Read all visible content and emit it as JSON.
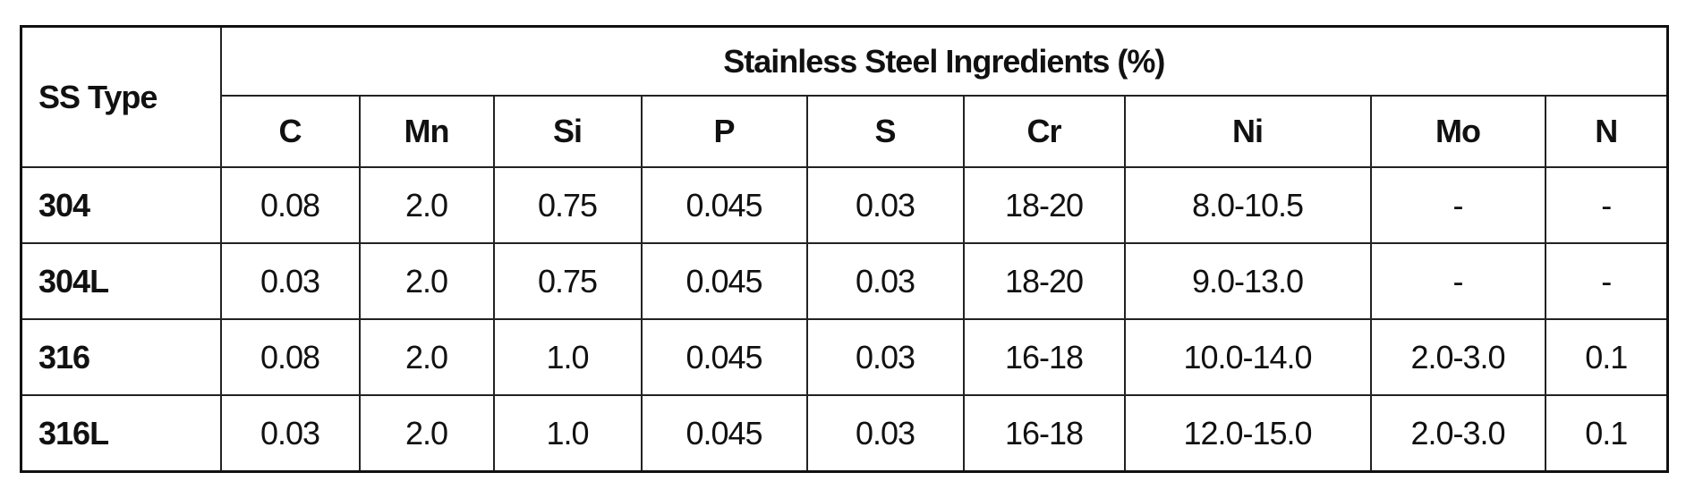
{
  "header": {
    "row_label": "SS Type",
    "group_title": "Stainless Steel Ingredients (%)",
    "columns": [
      "C",
      "Mn",
      "Si",
      "P",
      "S",
      "Cr",
      "Ni",
      "Mo",
      "N"
    ]
  },
  "table": {
    "rows": [
      [
        "304",
        "0.08",
        "2.0",
        "0.75",
        "0.045",
        "0.03",
        "18-20",
        "8.0-10.5",
        "-",
        "-"
      ],
      [
        "304L",
        "0.03",
        "2.0",
        "0.75",
        "0.045",
        "0.03",
        "18-20",
        "9.0-13.0",
        "-",
        "-"
      ],
      [
        "316",
        "0.08",
        "2.0",
        "1.0",
        "0.045",
        "0.03",
        "16-18",
        "10.0-14.0",
        "2.0-3.0",
        "0.1"
      ],
      [
        "316L",
        "0.03",
        "2.0",
        "1.0",
        "0.045",
        "0.03",
        "16-18",
        "12.0-15.0",
        "2.0-3.0",
        "0.1"
      ]
    ]
  }
}
